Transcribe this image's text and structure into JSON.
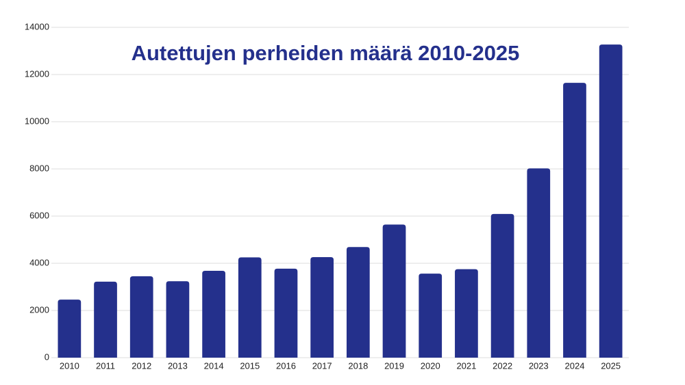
{
  "chart_data": {
    "type": "bar",
    "title": "Autettujen perheiden määrä 2010-2025",
    "categories": [
      "2010",
      "2011",
      "2012",
      "2013",
      "2014",
      "2015",
      "2016",
      "2017",
      "2018",
      "2019",
      "2020",
      "2021",
      "2022",
      "2023",
      "2024",
      "2025"
    ],
    "values": [
      2460,
      3220,
      3450,
      3240,
      3680,
      4250,
      3770,
      4260,
      4690,
      5640,
      3560,
      3750,
      6090,
      8020,
      11650,
      13270
    ],
    "color": "#24308c",
    "ylim": [
      0,
      14000
    ],
    "yticks": [
      0,
      2000,
      4000,
      6000,
      8000,
      10000,
      12000,
      14000
    ],
    "grid": true
  }
}
